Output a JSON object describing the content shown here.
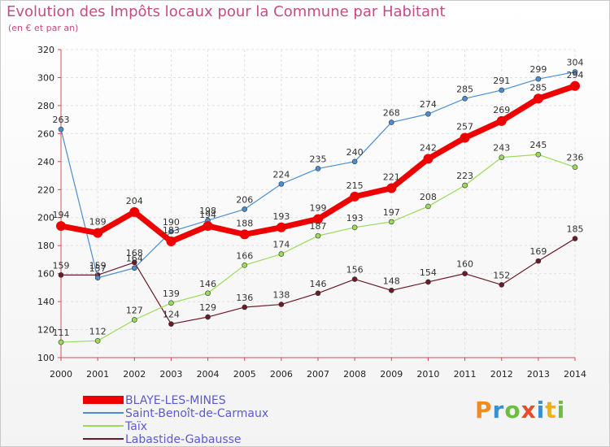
{
  "title": "Evolution des Impôts locaux pour la Commune par Habitant",
  "subtitle": "(en € et par an)",
  "logo": "Proxiti",
  "chart_data": {
    "type": "line",
    "x": [
      2000,
      2001,
      2002,
      2003,
      2004,
      2005,
      2006,
      2007,
      2008,
      2009,
      2010,
      2011,
      2012,
      2013,
      2014
    ],
    "ylim": [
      100,
      320
    ],
    "yticks": [
      100,
      120,
      140,
      160,
      180,
      200,
      220,
      240,
      260,
      280,
      300,
      320
    ],
    "grid": true,
    "legend_position": "bottom",
    "series": [
      {
        "name": "BLAYE-LES-MINES",
        "color": "#ee0000",
        "values": [
          194,
          189,
          204,
          183,
          194,
          188,
          193,
          199,
          215,
          221,
          242,
          257,
          269,
          285,
          294
        ]
      },
      {
        "name": "Saint-Benoît-de-Carmaux",
        "color": "#4b8ed0",
        "values": [
          263,
          157,
          164,
          190,
          198,
          206,
          224,
          235,
          240,
          268,
          274,
          285,
          291,
          299,
          304
        ]
      },
      {
        "name": "Taïx",
        "color": "#9adb5a",
        "values": [
          111,
          112,
          127,
          139,
          146,
          166,
          174,
          187,
          193,
          197,
          208,
          223,
          243,
          245,
          236
        ]
      },
      {
        "name": "Labastide-Gabausse",
        "color": "#6b1a26",
        "values": [
          159,
          159,
          168,
          124,
          129,
          136,
          138,
          146,
          156,
          148,
          154,
          160,
          152,
          169,
          185
        ]
      }
    ]
  }
}
